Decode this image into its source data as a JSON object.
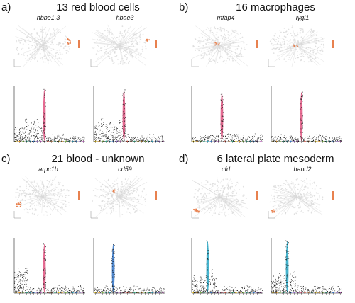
{
  "panels": [
    {
      "label": "a)",
      "title": "13 red blood cells",
      "genes": [
        {
          "name": "hbbe1.3"
        },
        {
          "name": "hbae3"
        }
      ]
    },
    {
      "label": "b)",
      "title": "16 macrophages",
      "genes": [
        {
          "name": "mfap4"
        },
        {
          "name": "lygl1"
        }
      ]
    },
    {
      "label": "c)",
      "title": "21 blood - unknown",
      "genes": [
        {
          "name": "arpc1b"
        },
        {
          "name": "cd59"
        }
      ]
    },
    {
      "label": "d)",
      "title": "6 lateral plate mesoderm",
      "genes": [
        {
          "name": "cfd"
        },
        {
          "name": "hand2"
        }
      ]
    }
  ],
  "colors": {
    "umap_base": "#d9d9d9",
    "umap_highlight": "#e8814f",
    "palette": [
      "#e8c21a",
      "#f39c1e",
      "#7fbf3f",
      "#2aa784",
      "#26a7c6",
      "#2f73c8",
      "#8e63c7",
      "#c55fc6",
      "#e0517f",
      "#e2523f",
      "#9c6b3f",
      "#33a37a"
    ]
  }
}
